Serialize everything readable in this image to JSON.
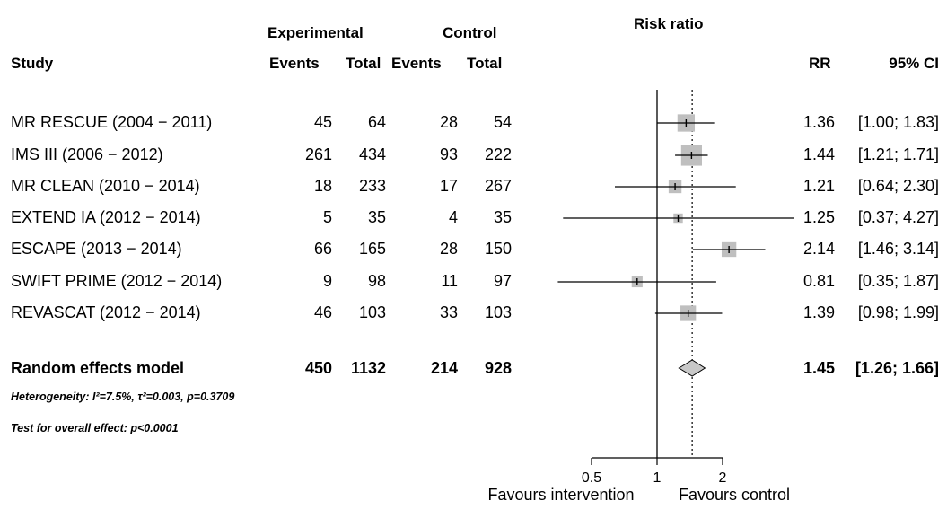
{
  "header": {
    "experimental": "Experimental",
    "control": "Control",
    "risk_ratio": "Risk ratio",
    "study": "Study",
    "events": "Events",
    "total": "Total",
    "rr": "RR",
    "ci": "95% CI"
  },
  "studies": [
    {
      "name": "MR RESCUE (2004 − 2011)",
      "exp_events": "45",
      "exp_total": "64",
      "ctl_events": "28",
      "ctl_total": "54",
      "rr": "1.36",
      "ci": "[1.00; 1.83]"
    },
    {
      "name": "IMS III (2006 − 2012)",
      "exp_events": "261",
      "exp_total": "434",
      "ctl_events": "93",
      "ctl_total": "222",
      "rr": "1.44",
      "ci": "[1.21; 1.71]"
    },
    {
      "name": "MR CLEAN (2010 − 2014)",
      "exp_events": "18",
      "exp_total": "233",
      "ctl_events": "17",
      "ctl_total": "267",
      "rr": "1.21",
      "ci": "[0.64; 2.30]"
    },
    {
      "name": "EXTEND IA (2012 − 2014)",
      "exp_events": "5",
      "exp_total": "35",
      "ctl_events": "4",
      "ctl_total": "35",
      "rr": "1.25",
      "ci": "[0.37; 4.27]"
    },
    {
      "name": "ESCAPE (2013 − 2014)",
      "exp_events": "66",
      "exp_total": "165",
      "ctl_events": "28",
      "ctl_total": "150",
      "rr": "2.14",
      "ci": "[1.46; 3.14]"
    },
    {
      "name": "SWIFT PRIME (2012 − 2014)",
      "exp_events": "9",
      "exp_total": "98",
      "ctl_events": "11",
      "ctl_total": "97",
      "rr": "0.81",
      "ci": "[0.35; 1.87]"
    },
    {
      "name": "REVASCAT (2012 − 2014)",
      "exp_events": "46",
      "exp_total": "103",
      "ctl_events": "33",
      "ctl_total": "103",
      "rr": "1.39",
      "ci": "[0.98; 1.99]"
    }
  ],
  "summary": {
    "name": "Random effects model",
    "exp_events": "450",
    "exp_total": "1132",
    "ctl_events": "214",
    "ctl_total": "928",
    "rr": "1.45",
    "ci": "[1.26; 1.66]"
  },
  "footnotes": {
    "heterogeneity": "Heterogeneity: I²=7.5%, τ²=0.003, p=0.3709",
    "overall": "Test for overall effect:  p<0.0001"
  },
  "axis": {
    "favours_left": "Favours intervention",
    "favours_right": "Favours control"
  },
  "colors": {
    "box": "#bfbfbf",
    "diamond": "#c8c8c8"
  },
  "chart_data": {
    "type": "forest",
    "title": "Risk ratio",
    "x_scale": "log",
    "reference_line": 1,
    "summary_line": 1.45,
    "xticks": [
      0.5,
      1,
      2
    ],
    "xtick_labels": [
      "0.5",
      "1",
      "2"
    ],
    "studies": [
      {
        "rr": 1.36,
        "lo": 1.0,
        "hi": 1.83,
        "weight": 0.22
      },
      {
        "rr": 1.44,
        "lo": 1.21,
        "hi": 1.71,
        "weight": 0.4
      },
      {
        "rr": 1.21,
        "lo": 0.64,
        "hi": 2.3,
        "weight": 0.07
      },
      {
        "rr": 1.25,
        "lo": 0.37,
        "hi": 4.27,
        "weight": 0.01
      },
      {
        "rr": 2.14,
        "lo": 1.46,
        "hi": 3.14,
        "weight": 0.12
      },
      {
        "rr": 0.81,
        "lo": 0.35,
        "hi": 1.87,
        "weight": 0.03
      },
      {
        "rr": 1.39,
        "lo": 0.98,
        "hi": 1.99,
        "weight": 0.15
      }
    ],
    "summary": {
      "rr": 1.45,
      "lo": 1.26,
      "hi": 1.66
    }
  }
}
